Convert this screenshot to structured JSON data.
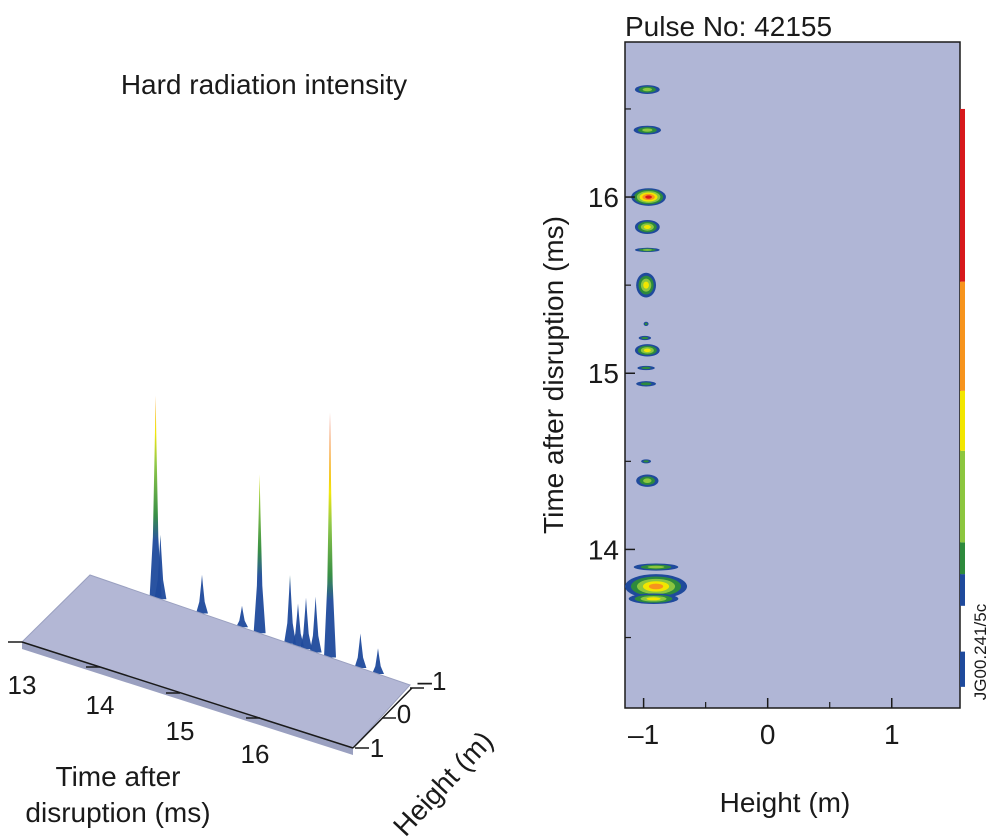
{
  "colors": {
    "background_plot": "#b0b6d6",
    "surface_base": "#b3b7d5",
    "surface_edge": "#9aa0c0",
    "scale": [
      "#1f4a9c",
      "#2e8a3c",
      "#8cc63f",
      "#f2e600",
      "#f7941d",
      "#d7191c"
    ]
  },
  "chart_data": [
    {
      "type": "surface",
      "title": "Hard radiation intensity",
      "xlabel_line1": "Time after",
      "xlabel_line2": "disruption (ms)",
      "ylabel": "Height (m)",
      "x_ticks": [
        "13",
        "14",
        "15",
        "16"
      ],
      "y_ticks": [
        "–1",
        "0",
        "1"
      ],
      "xlim": [
        13,
        17
      ],
      "ylim": [
        -1,
        1
      ],
      "peaks": [
        {
          "t": 13.82,
          "h": 0.47,
          "w": 0.06
        },
        {
          "t": 13.88,
          "h": 0.15,
          "w": 0.05
        },
        {
          "t": 14.4,
          "h": 0.09,
          "w": 0.04
        },
        {
          "t": 14.9,
          "h": 0.05,
          "w": 0.03
        },
        {
          "t": 15.12,
          "h": 0.37,
          "w": 0.05
        },
        {
          "t": 15.5,
          "h": 0.16,
          "w": 0.04
        },
        {
          "t": 15.6,
          "h": 0.1,
          "w": 0.03
        },
        {
          "t": 15.7,
          "h": 0.12,
          "w": 0.03
        },
        {
          "t": 15.82,
          "h": 0.13,
          "w": 0.04
        },
        {
          "t": 16.0,
          "h": 0.57,
          "w": 0.05
        },
        {
          "t": 16.38,
          "h": 0.08,
          "w": 0.03
        },
        {
          "t": 16.6,
          "h": 0.06,
          "w": 0.03
        }
      ]
    },
    {
      "type": "heatmap",
      "title": "Pulse No: 42155",
      "xlabel": "Height (m)",
      "ylabel": "Time after disruption (ms)",
      "xlim": [
        -1.15,
        1.55
      ],
      "ylim": [
        13.1,
        16.88
      ],
      "x_ticks": [
        "–1",
        "0",
        "1"
      ],
      "x_tick_values": [
        -1,
        0,
        1
      ],
      "y_ticks": [
        "14",
        "15",
        "16"
      ],
      "y_tick_values": [
        14,
        15,
        16
      ],
      "blobs": [
        {
          "t": 16.61,
          "x": -0.97,
          "dt": 0.025,
          "dx": 0.1,
          "level": 2
        },
        {
          "t": 16.38,
          "x": -0.97,
          "dt": 0.025,
          "dx": 0.11,
          "level": 2
        },
        {
          "t": 16.0,
          "x": -0.96,
          "dt": 0.05,
          "dx": 0.14,
          "level": 5
        },
        {
          "t": 15.83,
          "x": -0.97,
          "dt": 0.04,
          "dx": 0.1,
          "level": 3
        },
        {
          "t": 15.7,
          "x": -0.97,
          "dt": 0.012,
          "dx": 0.1,
          "level": 2
        },
        {
          "t": 15.5,
          "x": -0.98,
          "dt": 0.07,
          "dx": 0.08,
          "level": 3
        },
        {
          "t": 15.28,
          "x": -0.98,
          "dt": 0.012,
          "dx": 0.02,
          "level": 1
        },
        {
          "t": 15.2,
          "x": -0.99,
          "dt": 0.012,
          "dx": 0.05,
          "level": 1
        },
        {
          "t": 15.13,
          "x": -0.97,
          "dt": 0.035,
          "dx": 0.1,
          "level": 3
        },
        {
          "t": 15.03,
          "x": -0.98,
          "dt": 0.012,
          "dx": 0.07,
          "level": 1
        },
        {
          "t": 14.94,
          "x": -0.98,
          "dt": 0.015,
          "dx": 0.08,
          "level": 1
        },
        {
          "t": 14.5,
          "x": -0.98,
          "dt": 0.006,
          "dx": 0.04,
          "level": 1
        },
        {
          "t": 14.39,
          "x": -0.97,
          "dt": 0.035,
          "dx": 0.09,
          "level": 2
        },
        {
          "t": 13.9,
          "x": -0.9,
          "dt": 0.02,
          "dx": 0.18,
          "level": 2
        },
        {
          "t": 13.79,
          "x": -0.9,
          "dt": 0.07,
          "dx": 0.25,
          "level": 4
        },
        {
          "t": 13.72,
          "x": -0.92,
          "dt": 0.03,
          "dx": 0.2,
          "level": 3
        }
      ],
      "colorbar_segments": [
        {
          "level": 0,
          "from": 13.22,
          "to": 13.42
        },
        {
          "level": 0,
          "from": 13.68,
          "to": 13.86
        },
        {
          "level": 1,
          "from": 13.86,
          "to": 14.04
        },
        {
          "level": 2,
          "from": 14.04,
          "to": 14.56
        },
        {
          "level": 3,
          "from": 14.56,
          "to": 14.9
        },
        {
          "level": 4,
          "from": 14.9,
          "to": 15.52
        },
        {
          "level": 5,
          "from": 15.52,
          "to": 16.5
        }
      ]
    }
  ],
  "code_label": "JG00.241/5c"
}
